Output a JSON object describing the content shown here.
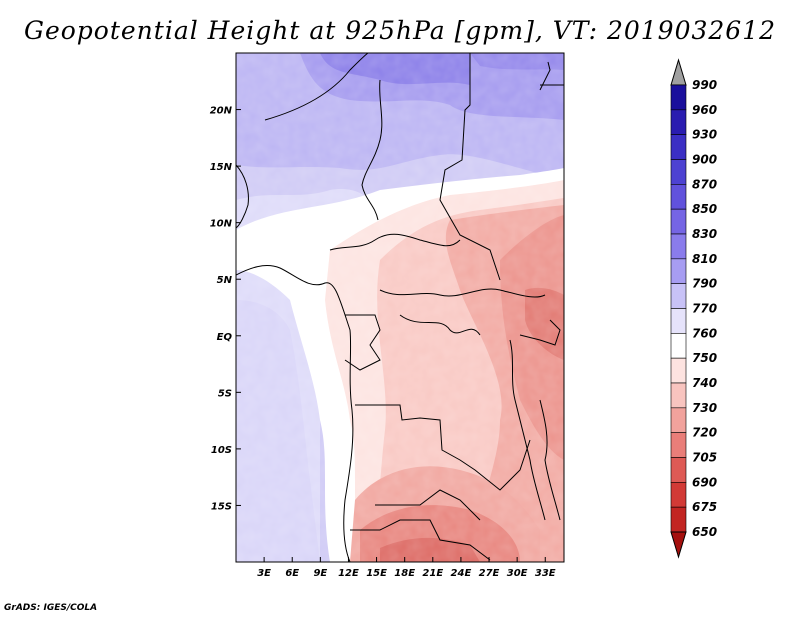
{
  "title": "Geopotential Height at 925hPa [gpm], VT: 2019032612",
  "credit": "GrADS: IGES/COLA",
  "map": {
    "lon_labels": [
      "3E",
      "6E",
      "9E",
      "12E",
      "15E",
      "18E",
      "21E",
      "24E",
      "27E",
      "30E",
      "33E"
    ],
    "lon_values": [
      3,
      6,
      9,
      12,
      15,
      18,
      21,
      24,
      27,
      30,
      33
    ],
    "lat_labels": [
      "20N",
      "15N",
      "10N",
      "5N",
      "EQ",
      "5S",
      "10S",
      "15S"
    ],
    "lat_values": [
      20,
      15,
      10,
      5,
      0,
      -5,
      -10,
      -15
    ],
    "lon_range": [
      0,
      35
    ],
    "lat_range": [
      -20,
      25
    ]
  },
  "colorbar": {
    "labels": [
      "990",
      "960",
      "930",
      "900",
      "870",
      "850",
      "830",
      "810",
      "790",
      "770",
      "760",
      "750",
      "740",
      "730",
      "720",
      "705",
      "690",
      "675",
      "650"
    ],
    "colors": [
      "#1a0f9c",
      "#2a1cb0",
      "#3b2fc4",
      "#4d42d2",
      "#6152dc",
      "#7565e4",
      "#8a7cec",
      "#a79df2",
      "#c8c2f7",
      "#e6e3fb",
      "#ffffff",
      "#fde3e0",
      "#f8c4bf",
      "#f1a29c",
      "#e97e79",
      "#de5a55",
      "#d23a36",
      "#c22522",
      "#a5100e"
    ]
  }
}
